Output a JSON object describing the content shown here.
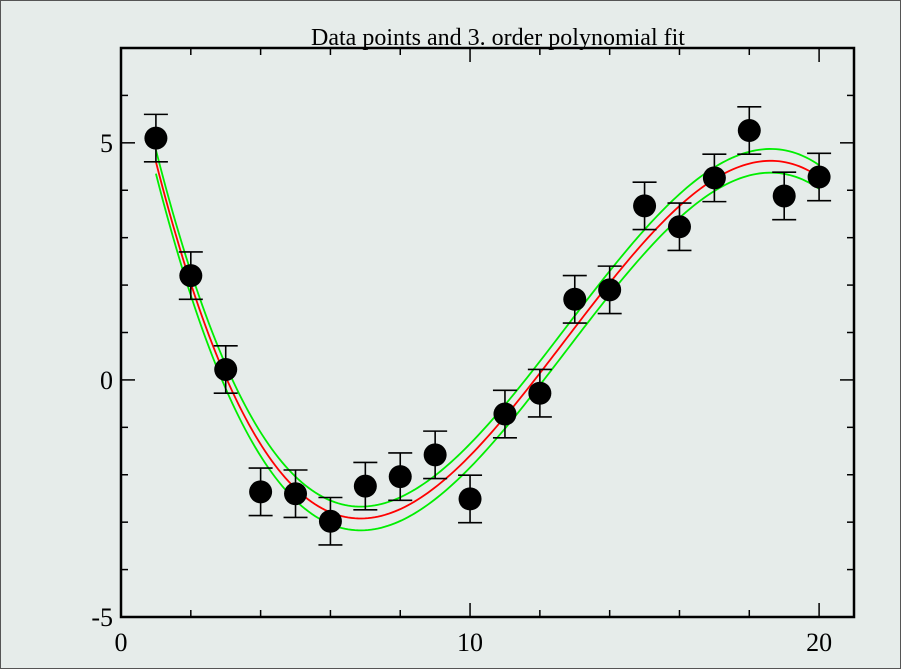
{
  "chart_data": {
    "type": "scatter",
    "title": "Data points and 3. order polynomial fit",
    "xlabel": "",
    "ylabel": "",
    "xlim": [
      0,
      21
    ],
    "ylim": [
      -5,
      7
    ],
    "x_ticks": [
      0,
      10,
      20
    ],
    "x_tick_labels": [
      "0",
      "10",
      "20"
    ],
    "y_ticks": [
      -5,
      0,
      5
    ],
    "y_tick_labels": [
      "-5",
      "0",
      "5"
    ],
    "x_minor_step": 2,
    "y_minor_step": 1,
    "grid": false,
    "legend": "none",
    "points": [
      {
        "x": 1,
        "y": 5.1,
        "err": 0.5
      },
      {
        "x": 2,
        "y": 2.2,
        "err": 0.5
      },
      {
        "x": 3,
        "y": 0.22,
        "err": 0.5
      },
      {
        "x": 4,
        "y": -2.36,
        "err": 0.5
      },
      {
        "x": 5,
        "y": -2.4,
        "err": 0.5
      },
      {
        "x": 6,
        "y": -2.98,
        "err": 0.5
      },
      {
        "x": 7,
        "y": -2.24,
        "err": 0.5
      },
      {
        "x": 8,
        "y": -2.04,
        "err": 0.5
      },
      {
        "x": 9,
        "y": -1.58,
        "err": 0.5
      },
      {
        "x": 10,
        "y": -2.51,
        "err": 0.5
      },
      {
        "x": 11,
        "y": -0.72,
        "err": 0.5
      },
      {
        "x": 12,
        "y": -0.28,
        "err": 0.5
      },
      {
        "x": 13,
        "y": 1.7,
        "err": 0.5
      },
      {
        "x": 14,
        "y": 1.9,
        "err": 0.5
      },
      {
        "x": 15,
        "y": 3.67,
        "err": 0.5
      },
      {
        "x": 16,
        "y": 3.23,
        "err": 0.5
      },
      {
        "x": 17,
        "y": 4.26,
        "err": 0.5
      },
      {
        "x": 18,
        "y": 5.26,
        "err": 0.5
      },
      {
        "x": 19,
        "y": 3.88,
        "err": 0.5
      },
      {
        "x": 20,
        "y": 4.28,
        "err": 0.5
      }
    ],
    "fit": {
      "order": 3,
      "x_range": [
        1,
        20
      ],
      "anchor_x": [
        1,
        6.5,
        18.25,
        20
      ],
      "anchor_y": [
        4.6,
        -2.9,
        4.6,
        4.28
      ],
      "band_half_width": 0.25
    },
    "colors": {
      "points": "#000000",
      "fit": "#ff0000",
      "band": "#00ee00",
      "background": "#e6ecea",
      "axes": "#000000"
    }
  }
}
